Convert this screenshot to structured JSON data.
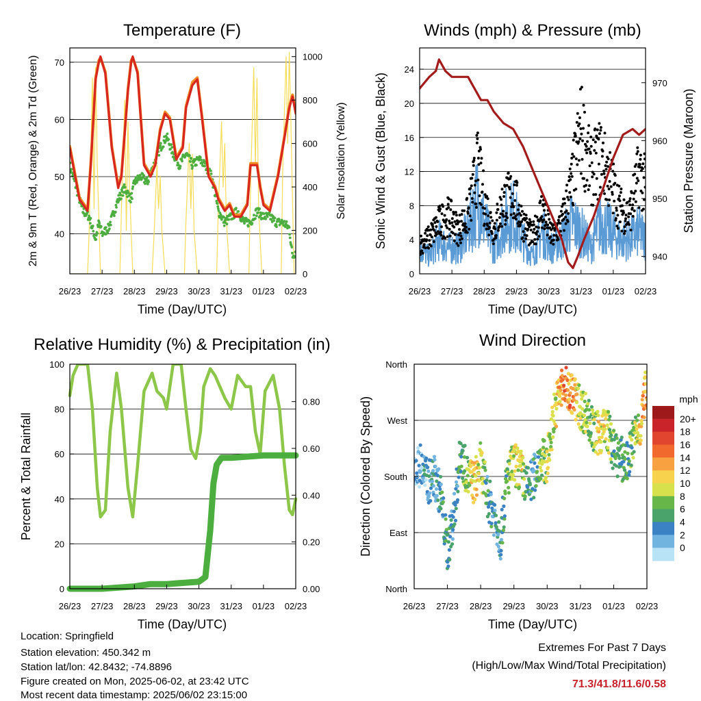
{
  "colors": {
    "temp_red": "#d7271e",
    "temp_orange": "#f08a24",
    "dewpoint_green": "#4cae3f",
    "solar_yellow": "#f5dc55",
    "wind_blue": "#5a9bd5",
    "gust_black": "#000000",
    "pressure_maroon": "#a31b1b",
    "rh_lightgreen": "#8cc74a",
    "precip_green": "#4cae3f",
    "extremes_red": "#c8202a"
  },
  "info": {
    "location": "Location: Springfield",
    "elevation": "Station elevation: 450.342 m",
    "latlon": "Station lat/lon: 42.8432; -74.8896",
    "created": "Figure created on Mon, 2025-06-02, at 23:42 UTC",
    "timestamp": "Most recent data timestamp: 2025/06/02 23:15:00"
  },
  "extremes": {
    "line1": "Extremes For Past 7 Days",
    "line2": "(High/Low/Max Wind/Total Precipitation)",
    "values": "71.3/41.8/11.6/0.58"
  },
  "chart_data": [
    {
      "id": "temperature",
      "type": "line",
      "title": "Temperature (F)",
      "xlabel": "Time (Day/UTC)",
      "ylabel": "2m & 9m T (Red, Orange) & 2m Td (Green)",
      "ylabel_right": "Solar Insolation (Yellow)",
      "x_ticks": [
        "26/23",
        "27/23",
        "28/23",
        "29/23",
        "30/23",
        "31/23",
        "01/23",
        "02/23"
      ],
      "xlim_days": [
        0,
        7
      ],
      "ylim": [
        33,
        72.5
      ],
      "y_ticks": [
        40,
        50,
        60,
        70
      ],
      "ylim_right": [
        0,
        1040
      ],
      "y_ticks_right": [
        0,
        200,
        400,
        600,
        800,
        1000
      ],
      "grid": "horizontal",
      "series": [
        {
          "name": "2m T",
          "x": [
            0,
            0.3,
            0.55,
            0.65,
            0.8,
            0.9,
            0.95,
            1.1,
            1.3,
            1.5,
            1.6,
            1.8,
            1.9,
            1.95,
            2.1,
            2.3,
            2.5,
            2.65,
            2.8,
            2.95,
            3.1,
            3.3,
            3.5,
            3.6,
            3.8,
            3.95,
            4.1,
            4.3,
            4.5,
            4.6,
            4.8,
            4.95,
            5.1,
            5.3,
            5.5,
            5.6,
            5.8,
            5.9,
            6.0,
            6.2,
            6.45,
            6.6,
            6.8,
            6.9,
            7.0
          ],
          "y": [
            55,
            46,
            44,
            52,
            67,
            70,
            71,
            68,
            55,
            48,
            50,
            65,
            70,
            71,
            68,
            52,
            50,
            52,
            58,
            61,
            60,
            53,
            55,
            62,
            66,
            67,
            60,
            50,
            48,
            46,
            44,
            45,
            43,
            43,
            45,
            52,
            52,
            48,
            45,
            44,
            50,
            55,
            62,
            64,
            61
          ]
        },
        {
          "name": "9m T",
          "x": [
            0,
            0.3,
            0.55,
            0.65,
            0.8,
            0.9,
            0.95,
            1.1,
            1.3,
            1.5,
            1.6,
            1.8,
            1.9,
            1.95,
            2.1,
            2.3,
            2.5,
            2.65,
            2.8,
            2.95,
            3.1,
            3.3,
            3.5,
            3.6,
            3.8,
            3.95,
            4.1,
            4.3,
            4.5,
            4.6,
            4.8,
            4.95,
            5.1,
            5.3,
            5.5,
            5.6,
            5.8,
            5.9,
            6.0,
            6.2,
            6.45,
            6.6,
            6.8,
            6.9,
            7.0
          ],
          "y": [
            55.3,
            46.3,
            44.3,
            52.3,
            67.3,
            70.3,
            70.8,
            68.3,
            55.3,
            48.3,
            50.3,
            65.3,
            70.3,
            70.8,
            68.3,
            52.3,
            50.3,
            52.3,
            58.3,
            61.3,
            60.3,
            53.3,
            55.3,
            62.3,
            66.5,
            67.3,
            60.3,
            50.3,
            48.3,
            46.3,
            44.3,
            45.3,
            43.3,
            43.3,
            45.3,
            52.3,
            52.3,
            48.3,
            45.3,
            44.3,
            50.3,
            55.3,
            62.3,
            64.3,
            61.3
          ]
        },
        {
          "name": "2m Td",
          "x": [
            0,
            0.2,
            0.4,
            0.6,
            0.8,
            0.9,
            1.0,
            1.2,
            1.5,
            1.7,
            1.9,
            2.0,
            2.2,
            2.4,
            2.6,
            2.8,
            3.0,
            3.2,
            3.4,
            3.6,
            3.8,
            4.0,
            4.2,
            4.4,
            4.6,
            4.8,
            5.0,
            5.2,
            5.4,
            5.6,
            5.8,
            6.0,
            6.2,
            6.4,
            6.6,
            6.8,
            6.9,
            7.0
          ],
          "y": [
            52,
            48,
            44,
            43,
            39,
            42,
            40,
            41,
            46,
            48,
            46,
            49,
            50,
            49,
            52,
            55,
            57,
            54,
            52,
            54,
            52,
            53,
            52,
            50,
            44,
            42,
            43,
            44,
            42,
            42,
            44,
            43,
            43,
            42,
            42,
            41,
            36,
            37
          ]
        },
        {
          "name": "Solar Insolation",
          "axis": "right",
          "x": [
            0,
            0.55,
            0.6,
            0.7,
            0.75,
            0.8,
            0.85,
            0.95,
            1.55,
            1.6,
            1.7,
            1.75,
            1.8,
            1.85,
            1.95,
            2.55,
            2.6,
            2.7,
            2.75,
            2.8,
            2.85,
            2.95,
            3.55,
            3.6,
            3.7,
            3.75,
            3.8,
            3.85,
            3.95,
            4.55,
            4.6,
            4.7,
            4.75,
            4.8,
            4.85,
            4.95,
            5.55,
            5.6,
            5.7,
            5.75,
            5.8,
            5.85,
            5.95,
            6.55,
            6.6,
            6.7,
            6.75,
            6.8,
            6.85,
            6.95,
            7.0
          ],
          "y": [
            0,
            0,
            200,
            900,
            300,
            950,
            500,
            0,
            0,
            300,
            800,
            200,
            700,
            400,
            0,
            0,
            150,
            500,
            300,
            450,
            200,
            0,
            0,
            250,
            600,
            300,
            550,
            200,
            0,
            0,
            300,
            700,
            400,
            600,
            250,
            0,
            0,
            400,
            950,
            500,
            900,
            300,
            0,
            0,
            500,
            1000,
            600,
            1020,
            700,
            0,
            0
          ]
        }
      ]
    },
    {
      "id": "winds",
      "type": "scatter",
      "title": "Winds (mph) & Pressure (mb)",
      "xlabel": "Time (Day/UTC)",
      "ylabel": "Sonic Wind & Gust (Blue, Black)",
      "ylabel_right": "Station Pressure (Maroon)",
      "x_ticks": [
        "26/23",
        "27/23",
        "28/23",
        "29/23",
        "30/23",
        "31/23",
        "01/23",
        "02/23"
      ],
      "xlim_days": [
        0,
        7
      ],
      "ylim": [
        0,
        26.5
      ],
      "y_ticks": [
        0,
        4,
        8,
        12,
        16,
        20,
        24
      ],
      "ylim_right": [
        937,
        976
      ],
      "y_ticks_right": [
        940,
        950,
        960,
        970
      ],
      "grid": "horizontal",
      "series": [
        {
          "name": "Sonic Wind",
          "x": [
            0,
            0.3,
            0.6,
            0.9,
            1.2,
            1.5,
            1.8,
            2.0,
            2.3,
            2.6,
            2.9,
            3.2,
            3.5,
            3.8,
            4.1,
            4.4,
            4.7,
            5.0,
            5.3,
            5.6,
            5.9,
            6.2,
            6.5,
            6.8,
            7.0
          ],
          "y": [
            3,
            2,
            4,
            3,
            3,
            5,
            9,
            6,
            3,
            6,
            7,
            4,
            2,
            5,
            3,
            4,
            6,
            5,
            3,
            6,
            5,
            4,
            4,
            5,
            4
          ]
        },
        {
          "name": "Gust",
          "x": [
            0,
            0.3,
            0.6,
            0.9,
            1.2,
            1.5,
            1.8,
            2.0,
            2.3,
            2.6,
            2.9,
            3.2,
            3.5,
            3.8,
            4.1,
            4.4,
            4.7,
            5.0,
            5.3,
            5.6,
            5.9,
            6.2,
            6.5,
            6.8,
            7.0
          ],
          "y": [
            4,
            5,
            7,
            8,
            6,
            8,
            15,
            10,
            6,
            10,
            11,
            7,
            5,
            9,
            5,
            7,
            12,
            20,
            14,
            16,
            13,
            9,
            8,
            14,
            12
          ]
        },
        {
          "name": "Station Pressure",
          "axis": "right",
          "x": [
            0,
            0.3,
            0.5,
            0.6,
            0.8,
            1.0,
            1.2,
            1.5,
            1.6,
            1.9,
            2.1,
            2.3,
            2.6,
            2.9,
            3.2,
            3.5,
            3.8,
            4.1,
            4.4,
            4.6,
            4.75,
            4.9,
            5.1,
            5.4,
            5.7,
            6.0,
            6.3,
            6.6,
            6.8,
            7.0
          ],
          "y": [
            969,
            971,
            972,
            974,
            972,
            971,
            971,
            971,
            970,
            967,
            967,
            965,
            963,
            962,
            959,
            955,
            951,
            947,
            943,
            939,
            938,
            940,
            943,
            947,
            952,
            957,
            961,
            962,
            961,
            962
          ]
        }
      ]
    },
    {
      "id": "humidity",
      "type": "line",
      "title": "Relative Humidity (%) & Precipitation (in)",
      "xlabel": "Time (Day/UTC)",
      "ylabel": "Percent & Total Rainfall",
      "x_ticks": [
        "26/23",
        "27/23",
        "28/23",
        "29/23",
        "30/23",
        "31/23",
        "01/23",
        "02/23"
      ],
      "xlim_days": [
        0,
        7
      ],
      "ylim": [
        0,
        100
      ],
      "y_ticks": [
        0,
        20,
        40,
        60,
        80,
        100
      ],
      "ylim_right": [
        0,
        0.96
      ],
      "y_ticks_right": [
        0.0,
        0.2,
        0.4,
        0.6,
        0.8
      ],
      "y_ticks_right_labels": [
        "0.00",
        "0.20",
        "0.40",
        "0.60",
        "0.80"
      ],
      "grid": "horizontal",
      "series": [
        {
          "name": "Relative Humidity",
          "x": [
            0,
            0.1,
            0.25,
            0.55,
            0.7,
            0.85,
            0.95,
            1.1,
            1.25,
            1.45,
            1.6,
            1.8,
            1.95,
            2.1,
            2.3,
            2.55,
            2.7,
            2.9,
            3.0,
            3.2,
            3.45,
            3.6,
            3.75,
            3.9,
            4.05,
            4.15,
            4.35,
            4.5,
            4.65,
            4.8,
            5.0,
            5.2,
            5.45,
            5.6,
            5.75,
            5.9,
            6.05,
            6.3,
            6.5,
            6.65,
            6.8,
            6.9,
            7.0
          ],
          "y": [
            86,
            95,
            100,
            100,
            80,
            45,
            32,
            35,
            70,
            96,
            80,
            45,
            32,
            55,
            88,
            96,
            88,
            85,
            80,
            100,
            100,
            80,
            62,
            58,
            70,
            90,
            98,
            95,
            90,
            85,
            80,
            95,
            90,
            90,
            70,
            60,
            88,
            95,
            80,
            55,
            35,
            33,
            40
          ]
        },
        {
          "name": "Total Precipitation",
          "axis": "right",
          "x": [
            0,
            1.0,
            2.0,
            2.5,
            3.0,
            4.0,
            4.2,
            4.35,
            4.45,
            4.55,
            4.7,
            5.0,
            6.0,
            7.0
          ],
          "y": [
            0.0,
            0.0,
            0.01,
            0.02,
            0.02,
            0.03,
            0.05,
            0.25,
            0.45,
            0.53,
            0.56,
            0.56,
            0.57,
            0.57
          ]
        }
      ]
    },
    {
      "id": "direction",
      "type": "scatter",
      "title": "Wind Direction",
      "xlabel": "Time (Day/UTC)",
      "ylabel": "Direction (Colored By Speed)",
      "x_ticks": [
        "26/23",
        "27/23",
        "28/23",
        "29/23",
        "30/23",
        "31/23",
        "01/23",
        "02/23"
      ],
      "xlim_days": [
        0,
        7
      ],
      "y_ticks_labels": [
        "North",
        "East",
        "South",
        "West",
        "North"
      ],
      "ylim_degrees": [
        0,
        360
      ],
      "grid": "horizontal",
      "series": [
        {
          "name": "Wind Direction",
          "x": [
            0,
            0.2,
            0.4,
            0.6,
            0.8,
            1.0,
            1.2,
            1.4,
            1.6,
            1.8,
            2.0,
            2.2,
            2.4,
            2.6,
            2.8,
            3.0,
            3.2,
            3.4,
            3.6,
            3.8,
            4.0,
            4.2,
            4.4,
            4.6,
            4.8,
            5.0,
            5.2,
            5.4,
            5.6,
            5.8,
            6.0,
            6.2,
            6.4,
            6.6,
            6.8,
            7.0
          ],
          "y": [
            190,
            200,
            170,
            180,
            150,
            60,
            120,
            220,
            180,
            170,
            200,
            150,
            120,
            80,
            180,
            200,
            190,
            160,
            180,
            210,
            200,
            280,
            320,
            320,
            310,
            290,
            280,
            250,
            250,
            260,
            220,
            210,
            200,
            240,
            260,
            330
          ],
          "speed": [
            1,
            1,
            2,
            2,
            2,
            3,
            2,
            3,
            4,
            6,
            5,
            3,
            2,
            2,
            4,
            5,
            6,
            3,
            2,
            4,
            5,
            5,
            7,
            8,
            7,
            5,
            4,
            4,
            6,
            5,
            3,
            3,
            3,
            4,
            6,
            7
          ]
        }
      ],
      "legend_title": "mph",
      "legend_labels": [
        "20+",
        "18",
        "16",
        "14",
        "12",
        "10",
        "8",
        "6",
        "4",
        "2",
        "0"
      ],
      "legend_colors": [
        "#9e1a1a",
        "#c8242a",
        "#e2452f",
        "#f2692e",
        "#f7a140",
        "#f7d34d",
        "#d6e14c",
        "#67b64a",
        "#4aa36a",
        "#3a82c3",
        "#72b4e0",
        "#b8e2f5"
      ]
    }
  ]
}
